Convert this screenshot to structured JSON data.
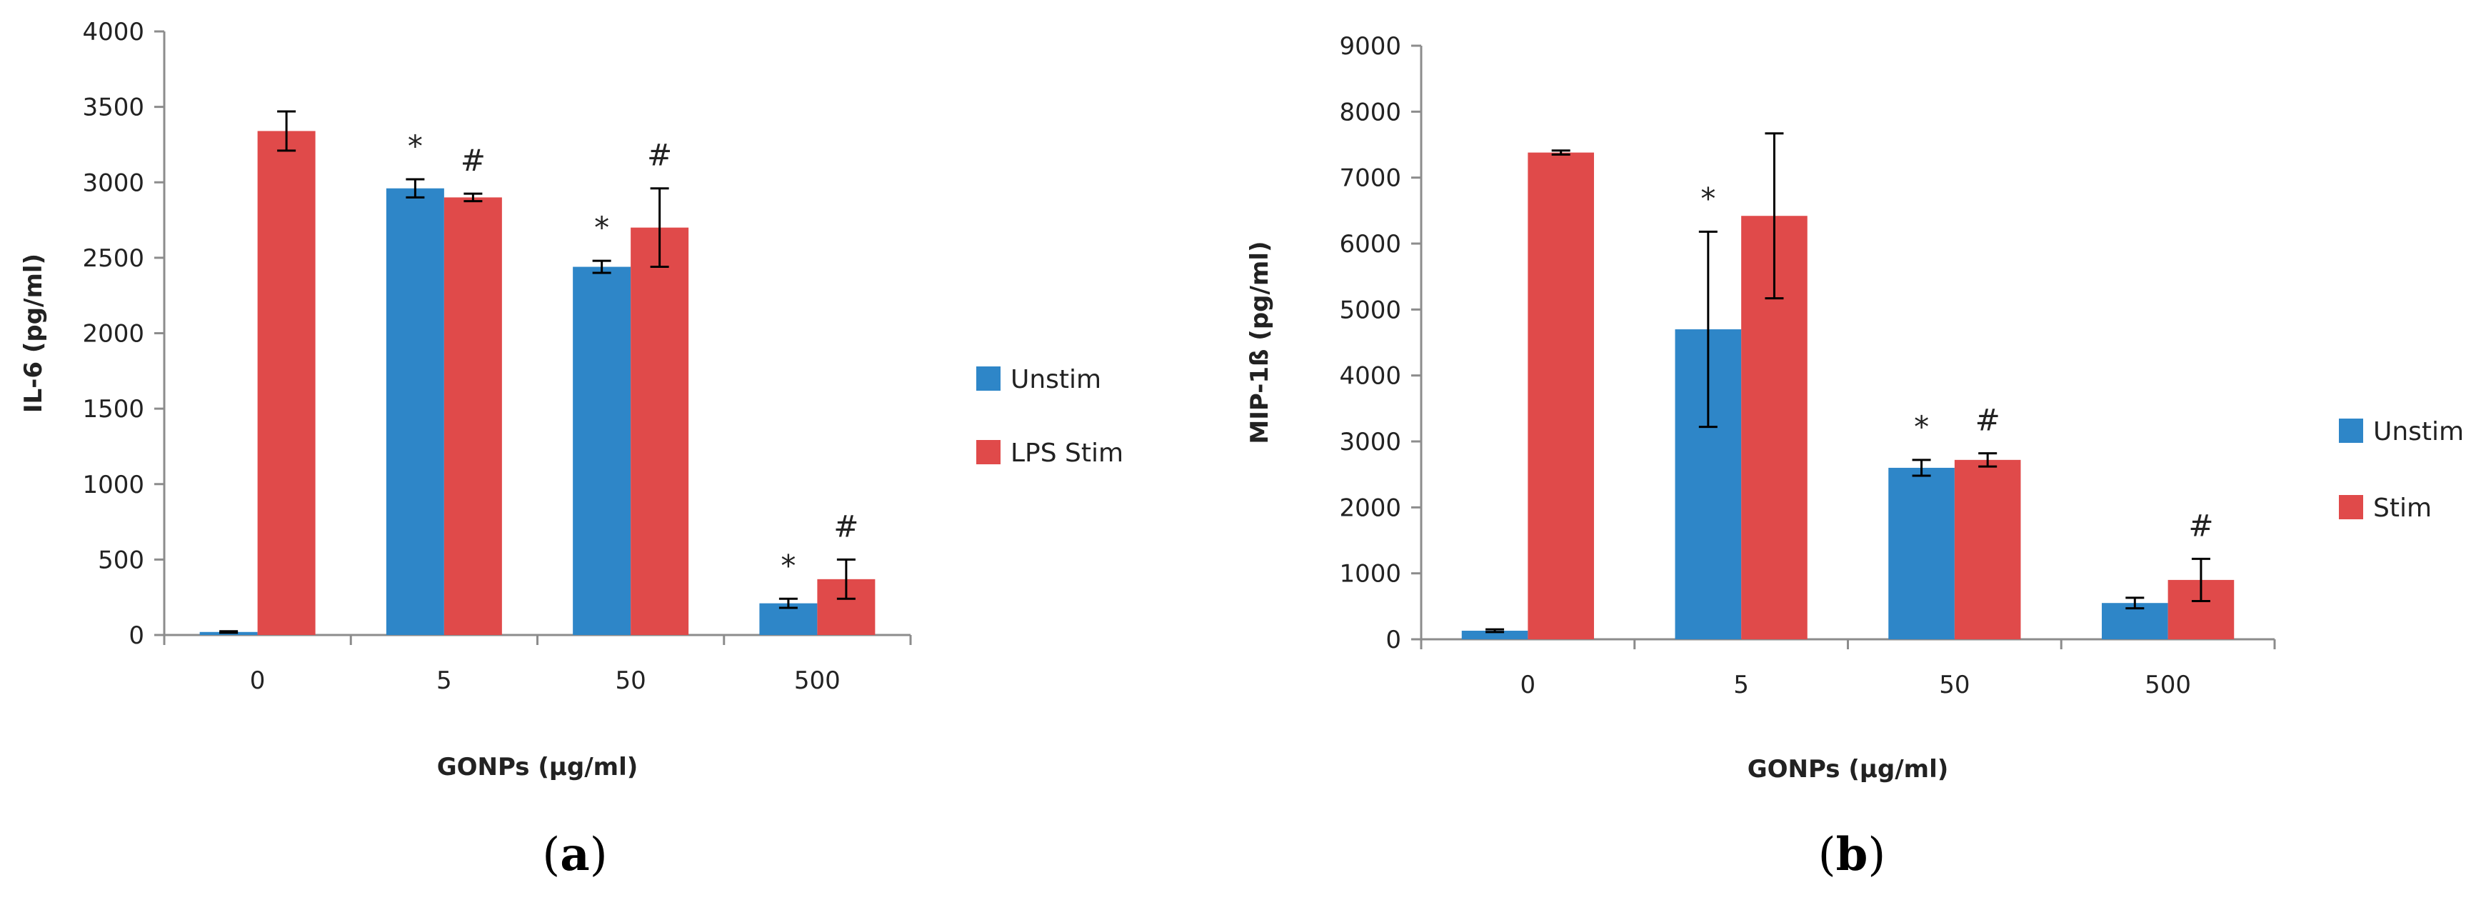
{
  "colors": {
    "unstim": "#2E86C8",
    "stim": "#E04A4A",
    "axis": "#8C8C8C",
    "text": "#222222"
  },
  "chart_data": [
    {
      "type": "bar",
      "panel_label_open": "(",
      "panel_label_letter": "a",
      "panel_label_close": ")",
      "xlabel": "GONPs (µg/ml)",
      "ylabel": "IL-6 (pg/ml)",
      "ylim": [
        0,
        4000
      ],
      "ytick_step": 500,
      "yticks": [
        "0",
        "500",
        "1000",
        "1500",
        "2000",
        "2500",
        "3000",
        "3500",
        "4000"
      ],
      "categories": [
        "0",
        "5",
        "50",
        "500"
      ],
      "legend_position": "right",
      "series": [
        {
          "name": "Unstim",
          "color": "#2E86C8",
          "values": [
            20,
            2960,
            2440,
            210
          ],
          "errors": [
            5,
            60,
            40,
            30
          ],
          "markers": [
            "",
            "*",
            "*",
            "*"
          ]
        },
        {
          "name": "LPS Stim",
          "color": "#E04A4A",
          "values": [
            3340,
            2900,
            2700,
            370
          ],
          "errors": [
            130,
            25,
            260,
            130
          ],
          "markers": [
            "",
            "#",
            "#",
            "#"
          ]
        }
      ]
    },
    {
      "type": "bar",
      "panel_label_open": "(",
      "panel_label_letter": "b",
      "panel_label_close": ")",
      "xlabel": "GONPs (µg/ml)",
      "ylabel": "MIP-1ß (pg/ml)",
      "ylim": [
        0,
        9000
      ],
      "ytick_step": 1000,
      "yticks": [
        "0",
        "1000",
        "2000",
        "3000",
        "4000",
        "5000",
        "6000",
        "7000",
        "8000",
        "9000"
      ],
      "categories": [
        "0",
        "5",
        "50",
        "500"
      ],
      "legend_position": "right",
      "series": [
        {
          "name": "Unstim",
          "color": "#2E86C8",
          "values": [
            130,
            4700,
            2600,
            550
          ],
          "errors": [
            20,
            1480,
            120,
            80
          ],
          "markers": [
            "",
            "*",
            "*",
            ""
          ]
        },
        {
          "name": "Stim",
          "color": "#E04A4A",
          "values": [
            7380,
            6420,
            2720,
            900
          ],
          "errors": [
            30,
            1250,
            100,
            320
          ],
          "markers": [
            "",
            "",
            "#",
            "#"
          ]
        }
      ]
    }
  ]
}
